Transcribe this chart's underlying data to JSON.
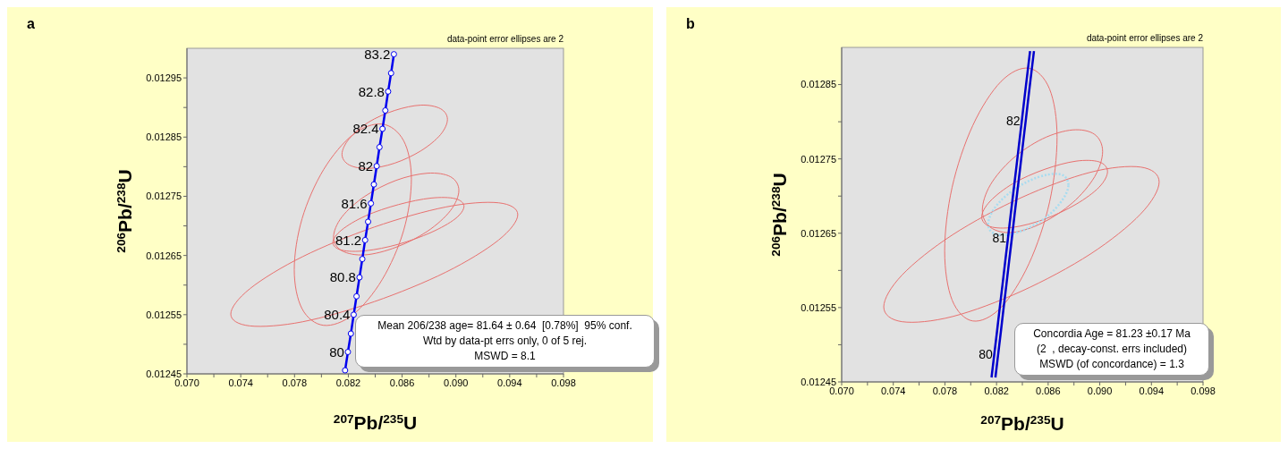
{
  "chart_data": [
    {
      "type": "line",
      "xlabel": "$^{207}$Pb/$^{235}$U",
      "ylabel": "$^{206}$Pb/$^{238}$U",
      "xlim": [
        0.07,
        0.098
      ],
      "ylim": [
        0.01245,
        0.013
      ],
      "xticks": [
        {
          "value": 0.07,
          "label": "0.070"
        },
        {
          "value": 0.072,
          "label": null
        },
        {
          "value": 0.074,
          "label": "0.074"
        },
        {
          "value": 0.076,
          "label": null
        },
        {
          "value": 0.078,
          "label": "0.078"
        },
        {
          "value": 0.08,
          "label": null
        },
        {
          "value": 0.082,
          "label": "0.082"
        },
        {
          "value": 0.084,
          "label": null
        },
        {
          "value": 0.086,
          "label": "0.086"
        },
        {
          "value": 0.088,
          "label": null
        },
        {
          "value": 0.09,
          "label": "0.090"
        },
        {
          "value": 0.092,
          "label": null
        },
        {
          "value": 0.094,
          "label": "0.094"
        },
        {
          "value": 0.096,
          "label": null
        },
        {
          "value": 0.098,
          "label": "0.098"
        }
      ],
      "yticks": [
        0.01245,
        {
          "value": 0.0125,
          "label": null
        },
        0.01255,
        {
          "value": 0.0126,
          "label": null
        },
        0.01265,
        {
          "value": 0.0127,
          "label": null
        },
        0.01275,
        {
          "value": 0.0128,
          "label": null
        },
        0.01285,
        {
          "value": 0.0129,
          "label": null
        },
        0.01295
      ],
      "series": [
        {
          "color": "#0000ee",
          "marker": "circle",
          "x": [
            0.08176,
            0.08197,
            0.08219,
            0.0824,
            0.08261,
            0.08283,
            0.08304,
            0.08325,
            0.08347,
            0.08368,
            0.0839,
            0.08411,
            0.08432,
            0.08454,
            0.08475,
            0.08496,
            0.08518,
            0.08539
          ],
          "values": [
            0.012456,
            0.012487,
            0.012518,
            0.01255,
            0.012581,
            0.012613,
            0.012644,
            0.012676,
            0.012707,
            0.012738,
            0.01277,
            0.012801,
            0.012833,
            0.012864,
            0.012895,
            0.012927,
            0.012958,
            0.01299
          ]
        }
      ],
      "annotations": [
        "a",
        "data-point error ellipses are 2",
        "Mean 206/238 age= 81.64 ± 0.64  [0.78%]  95% conf.",
        "Wtd by data-pt errs only, 0 of 5 rej.",
        "MSWD = 8.1",
        {
          "text": "80",
          "x": 0.08197,
          "y": 0.012487
        },
        {
          "text": "80.4",
          "x": 0.0824,
          "y": 0.01255
        },
        {
          "text": "80.8",
          "x": 0.08283,
          "y": 0.012613
        },
        {
          "text": "81.2",
          "x": 0.08325,
          "y": 0.012676
        },
        {
          "text": "81.6",
          "x": 0.08368,
          "y": 0.012738
        },
        {
          "text": "82",
          "x": 0.08411,
          "y": 0.012801
        },
        {
          "text": "82.4",
          "x": 0.08454,
          "y": 0.012864
        },
        {
          "text": "82.8",
          "x": 0.08496,
          "y": 0.012927
        },
        {
          "text": "83.2",
          "x": 0.08539,
          "y": 0.01299
        }
      ]
    },
    {
      "type": "line",
      "xlabel": "$^{207}$Pb/$^{235}$U",
      "ylabel": "$^{206}$Pb/$^{238}$U",
      "xlim": [
        0.07,
        0.098
      ],
      "ylim": [
        0.01245,
        0.0129
      ],
      "xticks": [
        {
          "value": 0.07,
          "label": "0.070"
        },
        {
          "value": 0.072,
          "label": null
        },
        {
          "value": 0.074,
          "label": "0.074"
        },
        {
          "value": 0.076,
          "label": null
        },
        {
          "value": 0.078,
          "label": "0.078"
        },
        {
          "value": 0.08,
          "label": null
        },
        {
          "value": 0.082,
          "label": "0.082"
        },
        {
          "value": 0.084,
          "label": null
        },
        {
          "value": 0.086,
          "label": "0.086"
        },
        {
          "value": 0.088,
          "label": null
        },
        {
          "value": 0.09,
          "label": "0.090"
        },
        {
          "value": 0.092,
          "label": null
        },
        {
          "value": 0.094,
          "label": "0.094"
        },
        {
          "value": 0.096,
          "label": null
        },
        {
          "value": 0.098,
          "label": "0.098"
        }
      ],
      "yticks": [
        0.01245,
        {
          "value": 0.0125,
          "label": null
        },
        0.01255,
        {
          "value": 0.0126,
          "label": null
        },
        0.01265,
        {
          "value": 0.0127,
          "label": null
        },
        0.01275,
        {
          "value": 0.0128,
          "label": null
        },
        0.01285
      ],
      "series": [
        {
          "color": "#0000cc",
          "x": [
            0.081612,
            0.081825,
            0.082038,
            0.082251,
            0.082464,
            0.082678,
            0.082891,
            0.083104,
            0.083318,
            0.083531,
            0.083745,
            0.083958,
            0.084172,
            0.084385,
            0.084599
          ],
          "values": [
            0.012456,
            0.012487,
            0.012518,
            0.01255,
            0.012581,
            0.012613,
            0.012644,
            0.012676,
            0.012707,
            0.012738,
            0.01277,
            0.012801,
            0.012833,
            0.012864,
            0.012895
          ]
        },
        {
          "color": "#0000cc",
          "x": [
            0.081912,
            0.082125,
            0.082338,
            0.082551,
            0.082764,
            0.082978,
            0.083191,
            0.083404,
            0.083618,
            0.083831,
            0.084045,
            0.084258,
            0.084472,
            0.084685,
            0.084899
          ],
          "values": [
            0.012456,
            0.012487,
            0.012518,
            0.01255,
            0.012581,
            0.012613,
            0.012644,
            0.012676,
            0.012707,
            0.012738,
            0.01277,
            0.012801,
            0.012833,
            0.012864,
            0.012895
          ]
        }
      ],
      "annotations": [
        "b",
        "data-point error ellipses are 2",
        "Concordia Age = 81.23 ±0.17 Ma",
        "(2  , decay-const. errs included)",
        "MSWD (of concordance) = 1.3",
        {
          "text": "80",
          "x": 0.08198,
          "y": 0.012487
        },
        {
          "text": "81",
          "x": 0.08304,
          "y": 0.012644
        },
        {
          "text": "82",
          "x": 0.08411,
          "y": 0.012801
        }
      ]
    }
  ]
}
